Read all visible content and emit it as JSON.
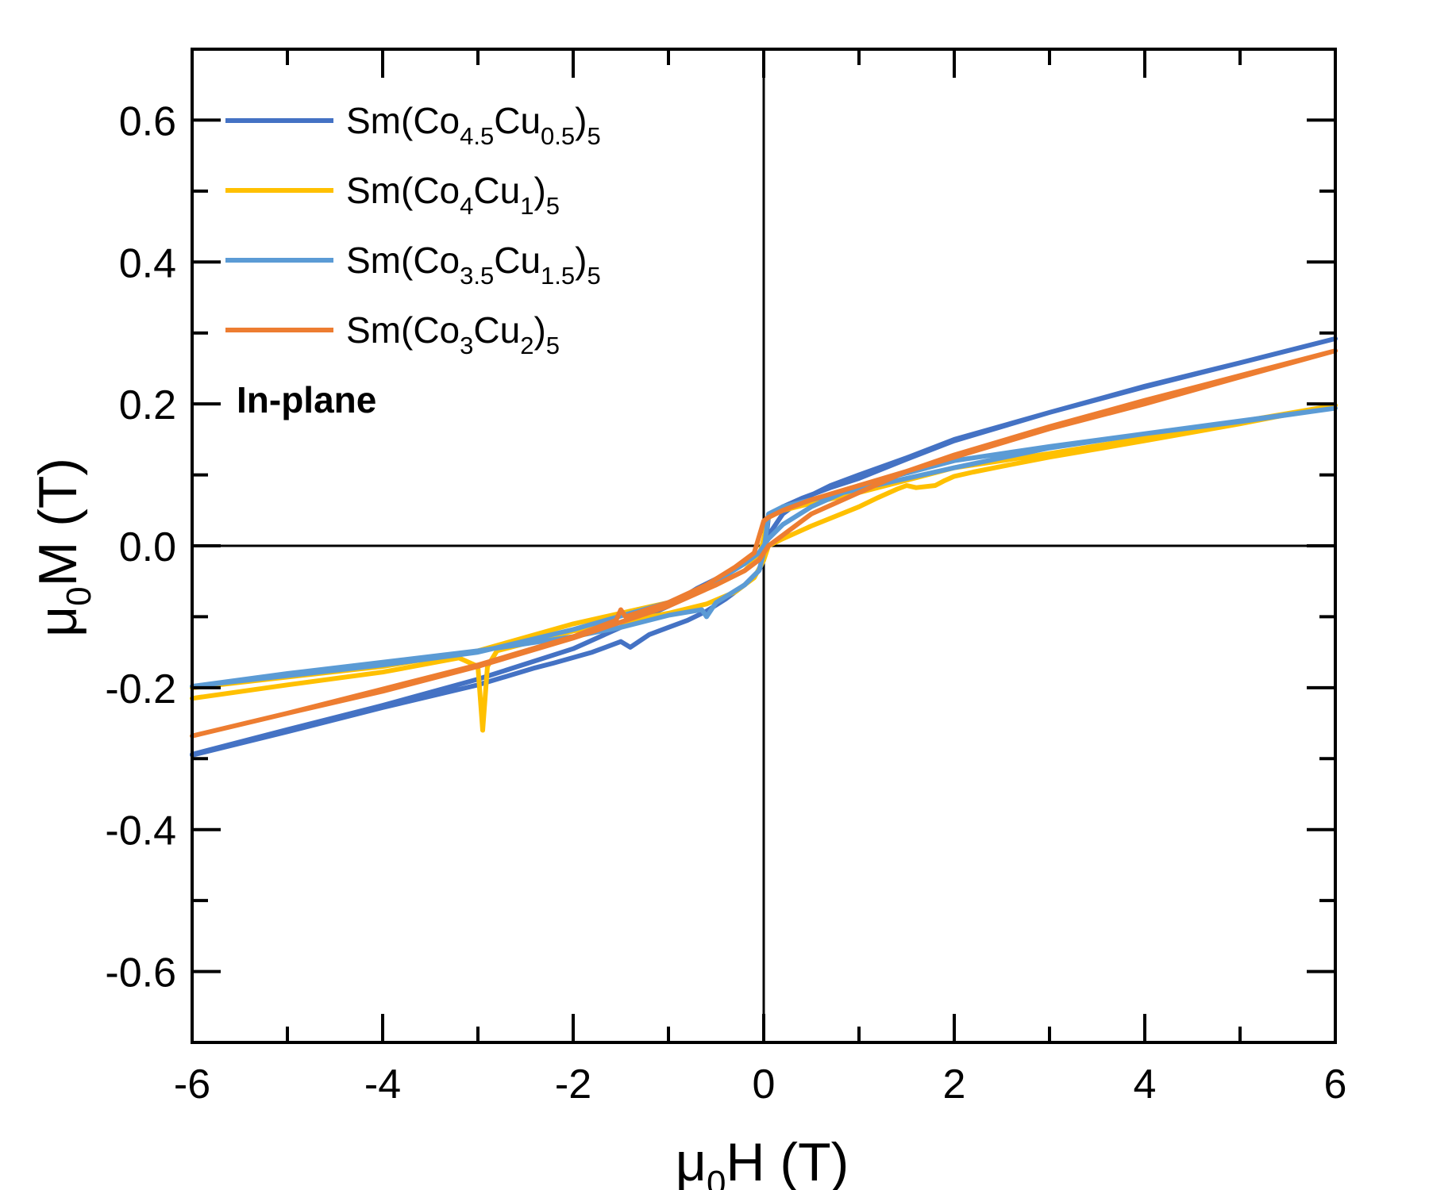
{
  "chart_data": {
    "type": "line",
    "title": "",
    "xlabel": {
      "main": "μ",
      "sub": "0",
      "rest": "H (T)"
    },
    "ylabel": {
      "main": "μ",
      "sub": "0",
      "rest": "M (T)"
    },
    "xlim": [
      -6,
      6
    ],
    "ylim": [
      -0.7,
      0.7
    ],
    "x_ticks": [
      -6,
      -4,
      -2,
      0,
      2,
      4,
      6
    ],
    "x_tick_labels": [
      "-6",
      "-4",
      "-2",
      "0",
      "2",
      "4",
      "6"
    ],
    "y_ticks": [
      -0.6,
      -0.4,
      -0.2,
      0.0,
      0.2,
      0.4,
      0.6
    ],
    "y_tick_labels": [
      "-0.6",
      "-0.4",
      "-0.2",
      "0.0",
      "0.2",
      "0.4",
      "0.6"
    ],
    "annotation": "In-plane",
    "legend_position": "top-left",
    "series": [
      {
        "name": "Sm(Co4.5Cu0.5)5",
        "color": "#4472C4",
        "label_parts": [
          [
            "Sm(Co",
            ""
          ],
          [
            "4.5",
            "sub"
          ],
          [
            "Cu",
            ""
          ],
          [
            "0.5",
            "sub"
          ],
          [
            ")",
            ""
          ],
          [
            "5",
            "sub"
          ]
        ],
        "x": [
          -6,
          -5,
          -4,
          -3,
          -2.4,
          -2.2,
          -1.8,
          -1.5,
          -1.4,
          -1.2,
          -1.0,
          -0.8,
          -0.6,
          -0.4,
          -0.2,
          -0.05,
          0,
          0.05,
          0.2,
          0.4,
          0.7,
          1.0,
          1.5,
          2.0,
          3.0,
          4.0,
          5.0,
          6.0,
          5.0,
          4.0,
          3.0,
          2.0,
          1.5,
          1.0,
          0.7,
          0.4,
          0.2,
          0.05,
          0,
          -0.05,
          -0.2,
          -0.4,
          -0.7,
          -1.0,
          -1.5,
          -2.0,
          -3.0,
          -4.0,
          -5.0,
          -6.0
        ],
        "y": [
          -0.295,
          -0.262,
          -0.228,
          -0.196,
          -0.172,
          -0.165,
          -0.15,
          -0.135,
          -0.143,
          -0.125,
          -0.115,
          -0.105,
          -0.092,
          -0.075,
          -0.055,
          -0.035,
          -0.02,
          0.04,
          0.055,
          0.067,
          0.082,
          0.095,
          0.122,
          0.148,
          0.188,
          0.225,
          0.258,
          0.292,
          0.258,
          0.224,
          0.188,
          0.15,
          0.124,
          0.1,
          0.085,
          0.065,
          0.045,
          0.015,
          0.0,
          -0.01,
          -0.025,
          -0.04,
          -0.06,
          -0.085,
          -0.115,
          -0.145,
          -0.188,
          -0.225,
          -0.259,
          -0.294
        ]
      },
      {
        "name": "Sm(Co4Cu1)5",
        "color": "#FFC000",
        "label_parts": [
          [
            "Sm(Co",
            ""
          ],
          [
            "4",
            "sub"
          ],
          [
            "Cu",
            ""
          ],
          [
            "1",
            "sub"
          ],
          [
            ")",
            ""
          ],
          [
            "5",
            "sub"
          ]
        ],
        "x": [
          -6,
          -5,
          -4,
          -3.2,
          -3.0,
          -2.95,
          -2.9,
          -2.8,
          -2.0,
          -1.5,
          -1.0,
          -0.6,
          -0.3,
          -0.1,
          0,
          0.05,
          0.2,
          0.5,
          1.0,
          1.2,
          1.4,
          1.5,
          1.6,
          1.8,
          1.9,
          2.0,
          2.2,
          2.5,
          3.0,
          4.0,
          5.0,
          6.0,
          5.0,
          4.0,
          3.0,
          2.0,
          1.0,
          0.5,
          0.2,
          0.05,
          0,
          -0.05,
          -0.2,
          -0.5,
          -1.0,
          -2.0,
          -3.0,
          -4.0,
          -5.0,
          -6.0
        ],
        "y": [
          -0.215,
          -0.196,
          -0.178,
          -0.158,
          -0.17,
          -0.26,
          -0.17,
          -0.148,
          -0.12,
          -0.108,
          -0.095,
          -0.082,
          -0.065,
          -0.045,
          -0.02,
          0.0,
          0.01,
          0.028,
          0.055,
          0.068,
          0.08,
          0.085,
          0.082,
          0.085,
          0.092,
          0.098,
          0.104,
          0.112,
          0.125,
          0.148,
          0.172,
          0.198,
          0.175,
          0.152,
          0.13,
          0.11,
          0.075,
          0.06,
          0.05,
          0.04,
          0.01,
          -0.015,
          -0.035,
          -0.055,
          -0.08,
          -0.11,
          -0.148,
          -0.17,
          -0.185,
          -0.2
        ]
      },
      {
        "name": "Sm(Co3.5Cu1.5)5",
        "color": "#5B9BD5",
        "label_parts": [
          [
            "Sm(Co",
            ""
          ],
          [
            "3.5",
            "sub"
          ],
          [
            "Cu",
            ""
          ],
          [
            "1.5",
            "sub"
          ],
          [
            ")",
            ""
          ],
          [
            "5",
            "sub"
          ]
        ],
        "x": [
          -6,
          -5,
          -4,
          -3,
          -2,
          -1.5,
          -1.0,
          -0.65,
          -0.6,
          -0.5,
          -0.2,
          -0.05,
          0,
          0.05,
          0.2,
          0.5,
          1.0,
          2.0,
          3.0,
          4.0,
          5.0,
          6.0,
          5.0,
          4.0,
          3.0,
          2.0,
          1.0,
          0.5,
          0.2,
          0.05,
          0,
          -0.05,
          -0.2,
          -0.5,
          -1.0,
          -2.0,
          -3.0,
          -4.0,
          -5.0,
          -6.0
        ],
        "y": [
          -0.198,
          -0.18,
          -0.164,
          -0.148,
          -0.128,
          -0.115,
          -0.098,
          -0.09,
          -0.1,
          -0.08,
          -0.055,
          -0.035,
          -0.01,
          0.045,
          0.055,
          0.065,
          0.08,
          0.11,
          0.138,
          0.158,
          0.176,
          0.194,
          0.175,
          0.158,
          0.14,
          0.12,
          0.085,
          0.055,
          0.03,
          0.01,
          0.0,
          -0.01,
          -0.025,
          -0.05,
          -0.08,
          -0.118,
          -0.15,
          -0.168,
          -0.183,
          -0.198
        ]
      },
      {
        "name": "Sm(Co3Cu2)5",
        "color": "#ED7D31",
        "label_parts": [
          [
            "Sm(Co",
            ""
          ],
          [
            "3",
            "sub"
          ],
          [
            "Cu",
            ""
          ],
          [
            "2",
            "sub"
          ],
          [
            ")",
            ""
          ],
          [
            "5",
            "sub"
          ]
        ],
        "x": [
          -6,
          -5,
          -4,
          -3,
          -2,
          -1.55,
          -1.5,
          -1.45,
          -1.0,
          -0.6,
          -0.3,
          -0.1,
          0,
          0.05,
          0.2,
          0.5,
          1.0,
          1.5,
          2.0,
          3.0,
          4.0,
          5.0,
          6.0,
          5.0,
          4.0,
          3.0,
          2.0,
          1.5,
          1.0,
          0.5,
          0.2,
          0.05,
          0,
          -0.05,
          -0.2,
          -0.5,
          -1.0,
          -2.0,
          -3.0,
          -4.0,
          -5.0,
          -6.0
        ],
        "y": [
          -0.268,
          -0.236,
          -0.202,
          -0.168,
          -0.128,
          -0.105,
          -0.09,
          -0.1,
          -0.08,
          -0.055,
          -0.03,
          -0.01,
          0.035,
          0.04,
          0.05,
          0.065,
          0.085,
          0.105,
          0.125,
          0.165,
          0.2,
          0.238,
          0.275,
          0.24,
          0.205,
          0.168,
          0.128,
          0.105,
          0.075,
          0.045,
          0.015,
          0.0,
          -0.01,
          -0.02,
          -0.035,
          -0.055,
          -0.085,
          -0.13,
          -0.17,
          -0.205,
          -0.236,
          -0.268
        ]
      }
    ]
  }
}
